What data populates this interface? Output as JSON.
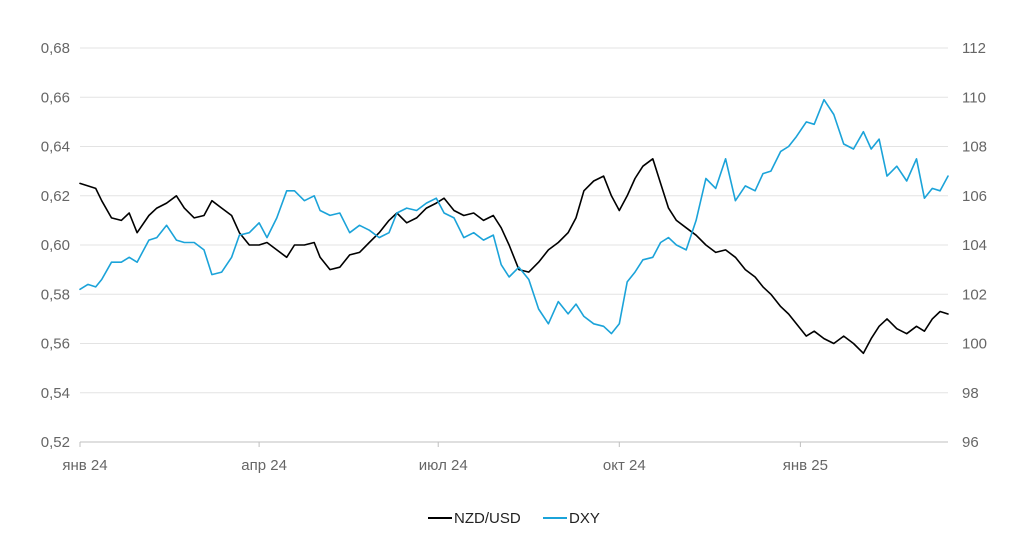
{
  "chart_data": {
    "type": "line",
    "title": "",
    "xlabel": "",
    "ylabel": "",
    "grid": true,
    "legend": "bottom-center",
    "x_ticks": [
      "янв 24",
      "апр 24",
      "июл 24",
      "окт 24",
      "янв 25"
    ],
    "y_left": {
      "ticks": [
        "0,52",
        "0,54",
        "0,56",
        "0,58",
        "0,60",
        "0,62",
        "0,64",
        "0,66",
        "0,68"
      ],
      "range": [
        0.52,
        0.68
      ]
    },
    "y_right": {
      "ticks": [
        "96",
        "98",
        "100",
        "102",
        "104",
        "106",
        "108",
        "110",
        "112"
      ],
      "range": [
        96,
        112
      ]
    },
    "series": [
      {
        "name": "NZD/USD",
        "axis": "left",
        "color": "#000000",
        "values": [
          [
            "2024-01-01",
            0.625
          ],
          [
            "2024-01-05",
            0.624
          ],
          [
            "2024-01-09",
            0.623
          ],
          [
            "2024-01-12",
            0.618
          ],
          [
            "2024-01-17",
            0.611
          ],
          [
            "2024-01-22",
            0.61
          ],
          [
            "2024-01-26",
            0.613
          ],
          [
            "2024-01-30",
            0.605
          ],
          [
            "2024-02-05",
            0.612
          ],
          [
            "2024-02-09",
            0.615
          ],
          [
            "2024-02-14",
            0.617
          ],
          [
            "2024-02-19",
            0.62
          ],
          [
            "2024-02-23",
            0.615
          ],
          [
            "2024-02-28",
            0.611
          ],
          [
            "2024-03-04",
            0.612
          ],
          [
            "2024-03-08",
            0.618
          ],
          [
            "2024-03-13",
            0.615
          ],
          [
            "2024-03-18",
            0.612
          ],
          [
            "2024-03-22",
            0.605
          ],
          [
            "2024-03-27",
            0.6
          ],
          [
            "2024-04-01",
            0.6
          ],
          [
            "2024-04-05",
            0.601
          ],
          [
            "2024-04-10",
            0.598
          ],
          [
            "2024-04-15",
            0.595
          ],
          [
            "2024-04-19",
            0.6
          ],
          [
            "2024-04-24",
            0.6
          ],
          [
            "2024-04-29",
            0.601
          ],
          [
            "2024-05-02",
            0.595
          ],
          [
            "2024-05-07",
            0.59
          ],
          [
            "2024-05-12",
            0.591
          ],
          [
            "2024-05-17",
            0.596
          ],
          [
            "2024-05-22",
            0.597
          ],
          [
            "2024-05-27",
            0.601
          ],
          [
            "2024-06-01",
            0.605
          ],
          [
            "2024-06-06",
            0.61
          ],
          [
            "2024-06-10",
            0.613
          ],
          [
            "2024-06-15",
            0.609
          ],
          [
            "2024-06-20",
            0.611
          ],
          [
            "2024-06-25",
            0.615
          ],
          [
            "2024-06-30",
            0.617
          ],
          [
            "2024-07-04",
            0.619
          ],
          [
            "2024-07-09",
            0.614
          ],
          [
            "2024-07-14",
            0.612
          ],
          [
            "2024-07-19",
            0.613
          ],
          [
            "2024-07-24",
            0.61
          ],
          [
            "2024-07-29",
            0.612
          ],
          [
            "2024-08-02",
            0.607
          ],
          [
            "2024-08-06",
            0.6
          ],
          [
            "2024-08-11",
            0.59
          ],
          [
            "2024-08-16",
            0.589
          ],
          [
            "2024-08-21",
            0.593
          ],
          [
            "2024-08-26",
            0.598
          ],
          [
            "2024-08-31",
            0.601
          ],
          [
            "2024-09-05",
            0.605
          ],
          [
            "2024-09-09",
            0.611
          ],
          [
            "2024-09-13",
            0.622
          ],
          [
            "2024-09-18",
            0.626
          ],
          [
            "2024-09-23",
            0.628
          ],
          [
            "2024-09-27",
            0.62
          ],
          [
            "2024-10-01",
            0.614
          ],
          [
            "2024-10-05",
            0.62
          ],
          [
            "2024-10-09",
            0.627
          ],
          [
            "2024-10-13",
            0.632
          ],
          [
            "2024-10-18",
            0.635
          ],
          [
            "2024-10-22",
            0.625
          ],
          [
            "2024-10-26",
            0.615
          ],
          [
            "2024-10-30",
            0.61
          ],
          [
            "2024-11-04",
            0.607
          ],
          [
            "2024-11-09",
            0.604
          ],
          [
            "2024-11-14",
            0.6
          ],
          [
            "2024-11-19",
            0.597
          ],
          [
            "2024-11-24",
            0.598
          ],
          [
            "2024-11-29",
            0.595
          ],
          [
            "2024-12-04",
            0.59
          ],
          [
            "2024-12-09",
            0.587
          ],
          [
            "2024-12-13",
            0.583
          ],
          [
            "2024-12-17",
            0.58
          ],
          [
            "2024-12-22",
            0.575
          ],
          [
            "2024-12-26",
            0.572
          ],
          [
            "2024-12-30",
            0.568
          ],
          [
            "2025-01-04",
            0.563
          ],
          [
            "2025-01-08",
            0.565
          ],
          [
            "2025-01-13",
            0.562
          ],
          [
            "2025-01-18",
            0.56
          ],
          [
            "2025-01-23",
            0.563
          ],
          [
            "2025-01-28",
            0.56
          ],
          [
            "2025-02-02",
            0.556
          ],
          [
            "2025-02-06",
            0.562
          ],
          [
            "2025-02-10",
            0.567
          ],
          [
            "2025-02-14",
            0.57
          ],
          [
            "2025-02-19",
            0.566
          ],
          [
            "2025-02-24",
            0.564
          ],
          [
            "2025-03-01",
            0.567
          ],
          [
            "2025-03-05",
            0.565
          ],
          [
            "2025-03-09",
            0.57
          ],
          [
            "2025-03-13",
            0.573
          ],
          [
            "2025-03-17",
            0.572
          ]
        ]
      },
      {
        "name": "DXY",
        "axis": "right",
        "color": "#1ba3d9",
        "values": [
          [
            "2024-01-01",
            102.2
          ],
          [
            "2024-01-05",
            102.4
          ],
          [
            "2024-01-09",
            102.3
          ],
          [
            "2024-01-12",
            102.6
          ],
          [
            "2024-01-17",
            103.3
          ],
          [
            "2024-01-22",
            103.3
          ],
          [
            "2024-01-26",
            103.5
          ],
          [
            "2024-01-30",
            103.3
          ],
          [
            "2024-02-05",
            104.2
          ],
          [
            "2024-02-09",
            104.3
          ],
          [
            "2024-02-14",
            104.8
          ],
          [
            "2024-02-19",
            104.2
          ],
          [
            "2024-02-23",
            104.1
          ],
          [
            "2024-02-28",
            104.1
          ],
          [
            "2024-03-04",
            103.8
          ],
          [
            "2024-03-08",
            102.8
          ],
          [
            "2024-03-13",
            102.9
          ],
          [
            "2024-03-18",
            103.5
          ],
          [
            "2024-03-22",
            104.4
          ],
          [
            "2024-03-27",
            104.5
          ],
          [
            "2024-04-01",
            104.9
          ],
          [
            "2024-04-05",
            104.3
          ],
          [
            "2024-04-10",
            105.1
          ],
          [
            "2024-04-15",
            106.2
          ],
          [
            "2024-04-19",
            106.2
          ],
          [
            "2024-04-24",
            105.8
          ],
          [
            "2024-04-29",
            106.0
          ],
          [
            "2024-05-02",
            105.4
          ],
          [
            "2024-05-07",
            105.2
          ],
          [
            "2024-05-12",
            105.3
          ],
          [
            "2024-05-17",
            104.5
          ],
          [
            "2024-05-22",
            104.8
          ],
          [
            "2024-05-27",
            104.6
          ],
          [
            "2024-06-01",
            104.3
          ],
          [
            "2024-06-06",
            104.5
          ],
          [
            "2024-06-10",
            105.3
          ],
          [
            "2024-06-15",
            105.5
          ],
          [
            "2024-06-20",
            105.4
          ],
          [
            "2024-06-25",
            105.7
          ],
          [
            "2024-06-30",
            105.9
          ],
          [
            "2024-07-04",
            105.3
          ],
          [
            "2024-07-09",
            105.1
          ],
          [
            "2024-07-14",
            104.3
          ],
          [
            "2024-07-19",
            104.5
          ],
          [
            "2024-07-24",
            104.2
          ],
          [
            "2024-07-29",
            104.4
          ],
          [
            "2024-08-02",
            103.2
          ],
          [
            "2024-08-06",
            102.7
          ],
          [
            "2024-08-11",
            103.1
          ],
          [
            "2024-08-16",
            102.6
          ],
          [
            "2024-08-21",
            101.4
          ],
          [
            "2024-08-26",
            100.8
          ],
          [
            "2024-08-31",
            101.7
          ],
          [
            "2024-09-05",
            101.2
          ],
          [
            "2024-09-09",
            101.6
          ],
          [
            "2024-09-13",
            101.1
          ],
          [
            "2024-09-18",
            100.8
          ],
          [
            "2024-09-23",
            100.7
          ],
          [
            "2024-09-27",
            100.4
          ],
          [
            "2024-10-01",
            100.8
          ],
          [
            "2024-10-05",
            102.5
          ],
          [
            "2024-10-09",
            102.9
          ],
          [
            "2024-10-13",
            103.4
          ],
          [
            "2024-10-18",
            103.5
          ],
          [
            "2024-10-22",
            104.1
          ],
          [
            "2024-10-26",
            104.3
          ],
          [
            "2024-10-30",
            104.0
          ],
          [
            "2024-11-04",
            103.8
          ],
          [
            "2024-11-09",
            105.0
          ],
          [
            "2024-11-14",
            106.7
          ],
          [
            "2024-11-19",
            106.3
          ],
          [
            "2024-11-24",
            107.5
          ],
          [
            "2024-11-29",
            105.8
          ],
          [
            "2024-12-04",
            106.4
          ],
          [
            "2024-12-09",
            106.2
          ],
          [
            "2024-12-13",
            106.9
          ],
          [
            "2024-12-17",
            107.0
          ],
          [
            "2024-12-22",
            107.8
          ],
          [
            "2024-12-26",
            108.0
          ],
          [
            "2024-12-30",
            108.4
          ],
          [
            "2025-01-04",
            109.0
          ],
          [
            "2025-01-08",
            108.9
          ],
          [
            "2025-01-13",
            109.9
          ],
          [
            "2025-01-18",
            109.3
          ],
          [
            "2025-01-23",
            108.1
          ],
          [
            "2025-01-28",
            107.9
          ],
          [
            "2025-02-02",
            108.6
          ],
          [
            "2025-02-06",
            107.9
          ],
          [
            "2025-02-10",
            108.3
          ],
          [
            "2025-02-14",
            106.8
          ],
          [
            "2025-02-19",
            107.2
          ],
          [
            "2025-02-24",
            106.6
          ],
          [
            "2025-03-01",
            107.5
          ],
          [
            "2025-03-05",
            105.9
          ],
          [
            "2025-03-09",
            106.3
          ],
          [
            "2025-03-13",
            106.2
          ],
          [
            "2025-03-17",
            106.8
          ]
        ]
      }
    ]
  }
}
